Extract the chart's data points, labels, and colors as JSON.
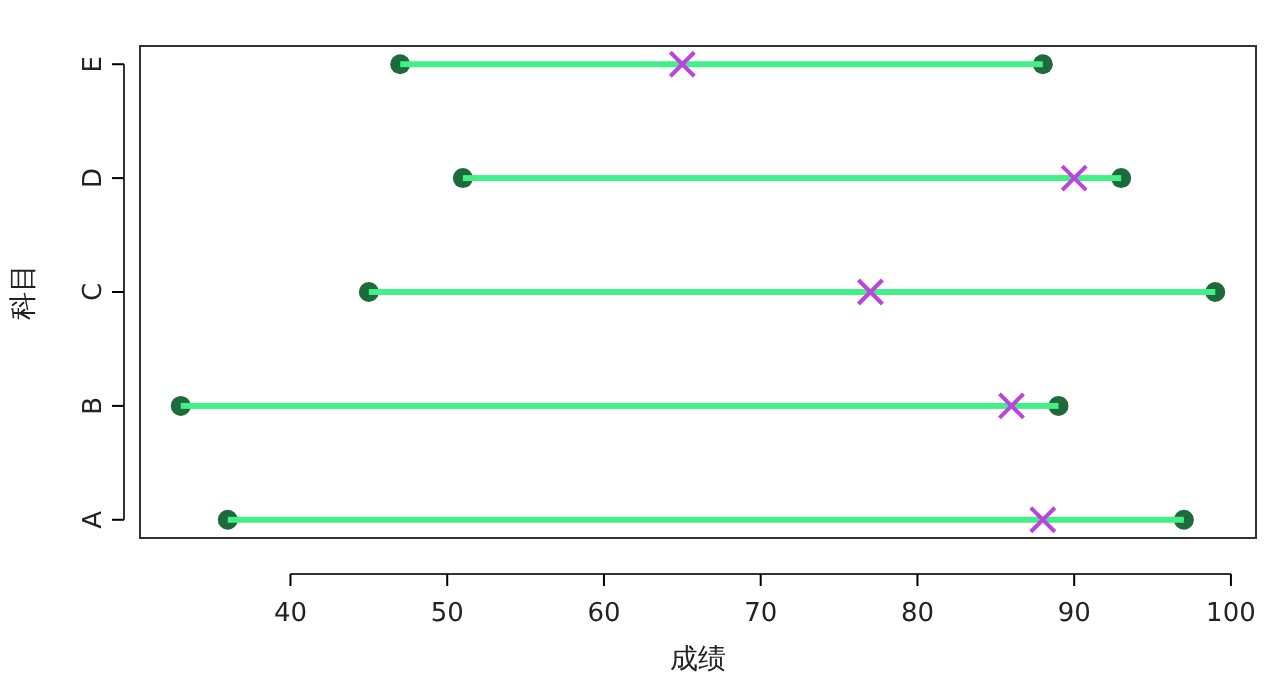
{
  "chart_data": {
    "type": "bar",
    "orientation": "horizontal",
    "xlabel": "成绩",
    "ylabel": "科目",
    "categories": [
      "E",
      "D",
      "C",
      "B",
      "A"
    ],
    "xlim": [
      30.4,
      101.6
    ],
    "xticks": [
      40,
      50,
      60,
      70,
      80,
      90,
      100
    ],
    "grid": false,
    "series": [
      {
        "type": "scatter",
        "marker": "circle",
        "color": "#1d6b3a",
        "values": [
          47,
          51,
          45,
          33,
          36
        ]
      },
      {
        "type": "scatter",
        "marker": "circle",
        "color": "#1d6b3a",
        "values": [
          88,
          93,
          99,
          89,
          97
        ]
      },
      {
        "color": "#44ee88",
        "base": [
          47,
          51,
          45,
          33,
          36
        ],
        "values": [
          41,
          42,
          54,
          56,
          61
        ]
      },
      {
        "type": "scatter",
        "marker": "cross",
        "color": "#bb44dd",
        "values": [
          65,
          90,
          77,
          86,
          88
        ]
      }
    ]
  }
}
